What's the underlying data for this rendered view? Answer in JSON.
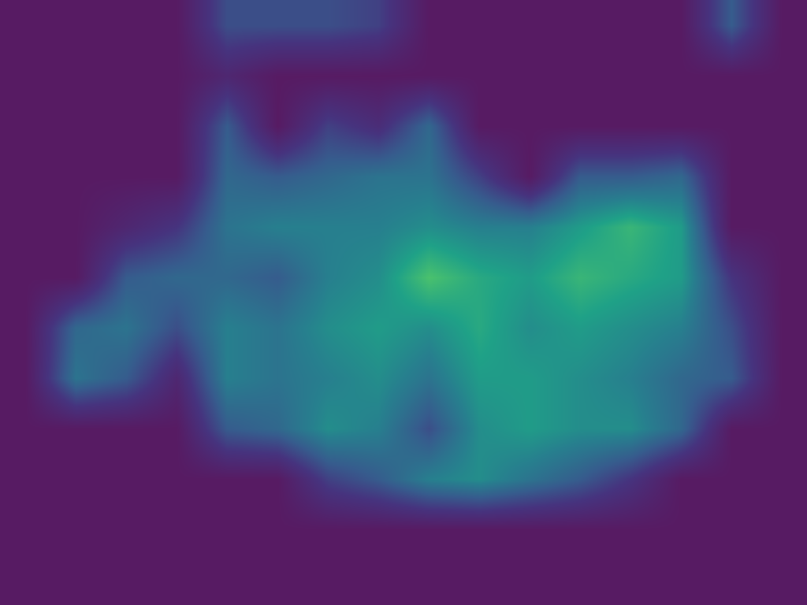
{
  "chart_data": {
    "type": "heatmap",
    "x": [
      0,
      1,
      2,
      3,
      4,
      5,
      6,
      7,
      8,
      9,
      10,
      11,
      12,
      13,
      14,
      15
    ],
    "y": [
      0,
      1,
      2,
      3,
      4,
      5,
      6,
      7,
      8,
      9,
      10,
      11
    ],
    "cells": [
      [
        0,
        0,
        0,
        0,
        0.3,
        0.3,
        0.3,
        0.25,
        0,
        0,
        0,
        0,
        0,
        0,
        0.35,
        0
      ],
      [
        0,
        0,
        0,
        0,
        0.1,
        0,
        0,
        0,
        0,
        0,
        0,
        0,
        0,
        0,
        0,
        0
      ],
      [
        0,
        0,
        0,
        0,
        0.35,
        0,
        0.25,
        0.15,
        0.4,
        0,
        0,
        0,
        0,
        0,
        0,
        0
      ],
      [
        0,
        0,
        0,
        0,
        0.4,
        0.35,
        0.4,
        0.45,
        0.45,
        0.25,
        0,
        0.35,
        0.35,
        0.4,
        0,
        0
      ],
      [
        0,
        0,
        0.1,
        0.2,
        0.45,
        0.5,
        0.5,
        0.5,
        0.55,
        0.5,
        0.5,
        0.6,
        0.7,
        0.6,
        0,
        0
      ],
      [
        0,
        0,
        0.35,
        0.4,
        0.4,
        0.35,
        0.5,
        0.55,
        0.75,
        0.65,
        0.6,
        0.7,
        0.65,
        0.6,
        0.2,
        0
      ],
      [
        0,
        0.4,
        0.45,
        0.3,
        0.5,
        0.45,
        0.55,
        0.6,
        0.55,
        0.65,
        0.55,
        0.6,
        0.55,
        0.5,
        0.3,
        0
      ],
      [
        0,
        0.45,
        0.35,
        0.1,
        0.5,
        0.45,
        0.5,
        0.55,
        0.45,
        0.6,
        0.6,
        0.55,
        0.5,
        0.4,
        0.35,
        0
      ],
      [
        0,
        0,
        0,
        0,
        0.35,
        0.4,
        0.55,
        0.5,
        0.3,
        0.55,
        0.6,
        0.55,
        0.55,
        0.4,
        0,
        0
      ],
      [
        0,
        0,
        0,
        0,
        0,
        0,
        0.25,
        0.35,
        0.5,
        0.55,
        0.45,
        0.35,
        0.2,
        0,
        0,
        0
      ],
      [
        0,
        0,
        0,
        0,
        0,
        0,
        0,
        0,
        0,
        0,
        0,
        0,
        0,
        0,
        0,
        0
      ],
      [
        0,
        0,
        0,
        0,
        0,
        0,
        0,
        0,
        0,
        0,
        0,
        0,
        0,
        0,
        0,
        0
      ]
    ],
    "zlim": [
      0,
      1
    ],
    "xlim": [
      -0.5,
      15.5
    ],
    "ylim": [
      11.5,
      -0.5
    ],
    "tick_labels": false
  }
}
